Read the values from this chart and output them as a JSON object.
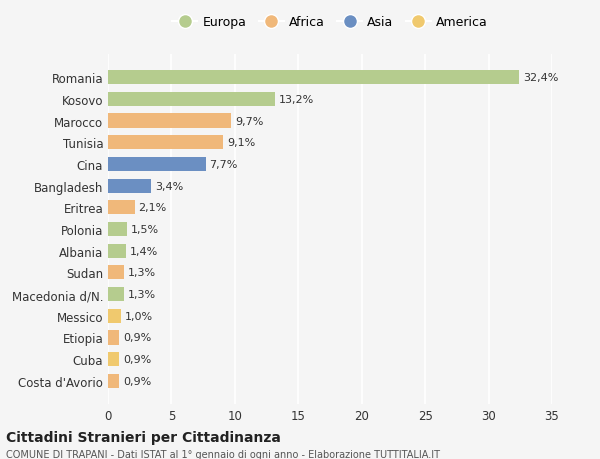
{
  "countries": [
    "Romania",
    "Kosovo",
    "Marocco",
    "Tunisia",
    "Cina",
    "Bangladesh",
    "Eritrea",
    "Polonia",
    "Albania",
    "Sudan",
    "Macedonia d/N.",
    "Messico",
    "Etiopia",
    "Cuba",
    "Costa d'Avorio"
  ],
  "values": [
    32.4,
    13.2,
    9.7,
    9.1,
    7.7,
    3.4,
    2.1,
    1.5,
    1.4,
    1.3,
    1.3,
    1.0,
    0.9,
    0.9,
    0.9
  ],
  "labels": [
    "32,4%",
    "13,2%",
    "9,7%",
    "9,1%",
    "7,7%",
    "3,4%",
    "2,1%",
    "1,5%",
    "1,4%",
    "1,3%",
    "1,3%",
    "1,0%",
    "0,9%",
    "0,9%",
    "0,9%"
  ],
  "continents": [
    "Europa",
    "Europa",
    "Africa",
    "Africa",
    "Asia",
    "Asia",
    "Africa",
    "Europa",
    "Europa",
    "Africa",
    "Europa",
    "America",
    "Africa",
    "America",
    "Africa"
  ],
  "colors": {
    "Europa": "#b5cc8e",
    "Africa": "#f0b87a",
    "Asia": "#6b8fc2",
    "America": "#f0c96e"
  },
  "legend_order": [
    "Europa",
    "Africa",
    "Asia",
    "America"
  ],
  "title": "Cittadini Stranieri per Cittadinanza",
  "subtitle": "COMUNE DI TRAPANI - Dati ISTAT al 1° gennaio di ogni anno - Elaborazione TUTTITALIA.IT",
  "xlim": [
    0,
    35
  ],
  "xticks": [
    0,
    5,
    10,
    15,
    20,
    25,
    30,
    35
  ],
  "background_color": "#f5f5f5",
  "grid_color": "#ffffff",
  "bar_height": 0.65
}
